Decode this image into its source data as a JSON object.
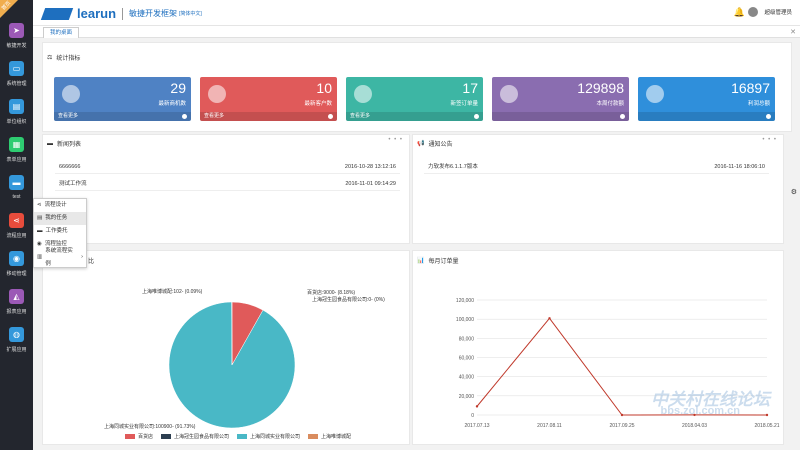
{
  "app": {
    "logo_text": "learun",
    "subtitle": "敏捷开发框架",
    "subtitle_small": "[简体中文]",
    "user_name": "超级管理员",
    "ribbon": "首页"
  },
  "sidebar": {
    "items": [
      {
        "label": "敏捷开发",
        "icon": "paper-plane-icon",
        "color": "#9b59b6"
      },
      {
        "label": "系统管理",
        "icon": "monitor-icon",
        "color": "#3498db"
      },
      {
        "label": "单位组织",
        "icon": "building-icon",
        "color": "#3498db"
      },
      {
        "label": "表单应用",
        "icon": "table-icon",
        "color": "#2ecc71"
      },
      {
        "label": "test",
        "icon": "bed-icon",
        "color": "#3498db"
      },
      {
        "label": "流程应用",
        "icon": "share-icon",
        "color": "#e74c3c"
      },
      {
        "label": "移动管理",
        "icon": "android-icon",
        "color": "#3498db"
      },
      {
        "label": "报表应用",
        "icon": "area-chart-icon",
        "color": "#9b59b6"
      },
      {
        "label": "扩展应用",
        "icon": "globe-icon",
        "color": "#3498db"
      }
    ]
  },
  "tabs": [
    {
      "label": "我的桌面"
    }
  ],
  "stats_section": {
    "title": "统计指标"
  },
  "stats": [
    {
      "value": "29",
      "label": "最新商机数",
      "footer": "查看更多",
      "color": "#4f82c4",
      "icon": "pie-icon"
    },
    {
      "value": "10",
      "label": "最新客户数",
      "footer": "查看更多",
      "color": "#e05a5a",
      "icon": "bar-icon"
    },
    {
      "value": "17",
      "label": "新签订单量",
      "footer": "查看更多",
      "color": "#3db6a4",
      "icon": "windows-icon"
    },
    {
      "value": "129898",
      "label": "本周付款额",
      "footer": "",
      "color": "#8a6db0",
      "icon": "globe-icon"
    },
    {
      "value": "16897",
      "label": "利润总额",
      "footer": "",
      "color": "#2f8fdb",
      "icon": "globe-icon"
    }
  ],
  "news": {
    "title": "新闻列表",
    "rows": [
      {
        "text": "6666666",
        "time": "2016-10-28 13:12:16"
      },
      {
        "text": "测试工作流",
        "time": "2016-11-01 09:14:29"
      }
    ]
  },
  "notice": {
    "title": "通知公告",
    "rows": [
      {
        "text": "力软发布6.1.1.7版本",
        "time": "2016-11-16 18:06:10"
      }
    ]
  },
  "dropdown": {
    "items": [
      {
        "label": "流程设计",
        "icon": "share-icon"
      },
      {
        "label": "我的任务",
        "icon": "file-icon"
      },
      {
        "label": "工作委托",
        "icon": "folder-icon"
      },
      {
        "label": "流程监控",
        "icon": "eye-icon"
      },
      {
        "label": "系统流程实例",
        "icon": "chart-icon"
      }
    ]
  },
  "pie_section": {
    "title_suffix": "比"
  },
  "line_section": {
    "title": "每月订单量"
  },
  "chart_data": [
    {
      "type": "pie",
      "slices": [
        {
          "name": "百货店",
          "label": "百货店:9000- (8.18%)",
          "value": 9000,
          "percent": 8.18,
          "color": "#e05a5a"
        },
        {
          "name": "上海冠生园食品有限公司",
          "label": "上海冠生园食品有限公司:0- (0%)",
          "value": 0,
          "percent": 0,
          "color": "#2c3e50"
        },
        {
          "name": "上海同城实业有限公司",
          "label": "上海同城实业有限公司:100900- (91.73%)",
          "value": 100900,
          "percent": 91.73,
          "color": "#49b8c6"
        },
        {
          "name": "上海唯博城配",
          "label": "上海唯博城配:102- (0.09%)",
          "value": 102,
          "percent": 0.09,
          "color": "#d98c5f"
        }
      ]
    },
    {
      "type": "line",
      "categories": [
        "2017.07.13",
        "2017.08.11",
        "2017.09.25",
        "2018.04.03",
        "2018.05.21"
      ],
      "values": [
        9000,
        100900,
        0,
        102,
        0
      ],
      "ylim": [
        0,
        120000
      ],
      "yticks": [
        "0",
        "20,000",
        "40,000",
        "60,000",
        "80,000",
        "100,000",
        "120,000"
      ],
      "color": "#c0392b"
    }
  ],
  "watermark": {
    "text": "中关村在线论坛",
    "url": "bbs.zol.com.cn"
  }
}
